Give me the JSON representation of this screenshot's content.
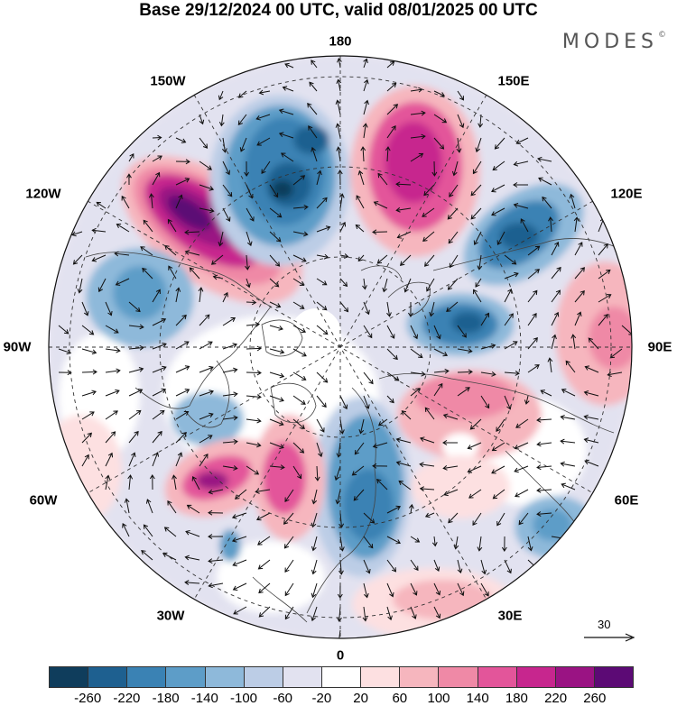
{
  "title": "Base 29/12/2024 00 UTC, valid 08/01/2025 00 UTC",
  "brand": "MODES",
  "brand_mark": "©",
  "longitude_labels": {
    "n180": "180",
    "w150": "150W",
    "e150": "150E",
    "w120": "120W",
    "e120": "120E",
    "w90": "90W",
    "e90": "90E",
    "w60": "60W",
    "e60": "60E",
    "w30": "30W",
    "e30": "30E",
    "s0": "0"
  },
  "wind_scale": {
    "value": "30"
  },
  "colorbar": {
    "colors": [
      "#0f3d5c",
      "#1e6090",
      "#3a82b4",
      "#5d9dc8",
      "#8eb9da",
      "#bccde6",
      "#e2e2f0",
      "#ffffff",
      "#fde0e1",
      "#f6b6be",
      "#ef89a6",
      "#e3559a",
      "#c7268e",
      "#9a1383",
      "#5c0a75"
    ],
    "ticks": [
      "-260",
      "-220",
      "-180",
      "-140",
      "-100",
      "-60",
      "-20",
      "20",
      "60",
      "100",
      "140",
      "180",
      "220",
      "260"
    ]
  }
}
